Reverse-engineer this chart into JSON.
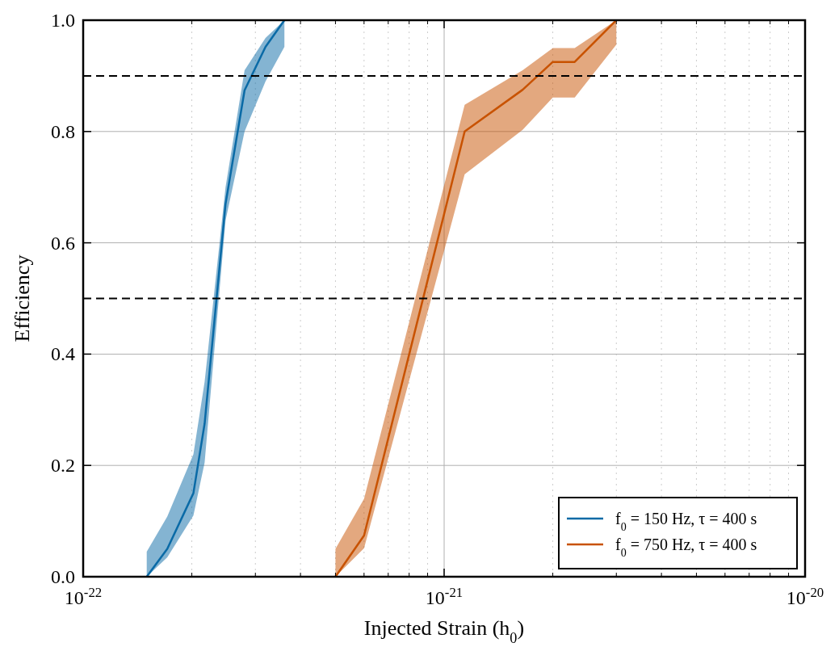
{
  "chart_data": {
    "type": "line",
    "xlabel": "Injected Strain (h$_{0}$)",
    "ylabel": "Efficiency",
    "log": "x",
    "xlim": [
      1e-22,
      1e-20
    ],
    "xticks": [
      {
        "value": 1e-22,
        "label": "10$^{-22}$"
      },
      {
        "value": 1e-21,
        "label": "10$^{-21}$"
      },
      {
        "value": 1e-20,
        "label": "10$^{-20}$"
      }
    ],
    "ylim": [
      0,
      1
    ],
    "yticks": [
      {
        "value": 0,
        "label": "0.0"
      },
      {
        "value": 0.2,
        "label": "0.2"
      },
      {
        "value": 0.4,
        "label": "0.4"
      },
      {
        "value": 0.6,
        "label": "0.6"
      },
      {
        "value": 0.8,
        "label": "0.8"
      },
      {
        "value": 1,
        "label": "1.0"
      }
    ],
    "grid": true,
    "legend": "bottom right",
    "marker": "none",
    "line_style": "solid",
    "ref_lines": [
      {
        "axis": "y",
        "value": 0.5,
        "color": "#000000",
        "line_style": "dashed"
      },
      {
        "axis": "y",
        "value": 0.9,
        "color": "#000000",
        "line_style": "dashed"
      }
    ],
    "series": [
      {
        "name": "f$_{0}$ = 150 Hz, τ = 400 s",
        "color": "#0a6aa6",
        "x": [
          1.5e-22,
          1.71e-22,
          2.02e-22,
          2.17e-22,
          2.48e-22,
          2.8e-22,
          3.2e-22,
          3.61e-22
        ],
        "values": [
          0,
          0.05,
          0.15,
          0.275,
          0.67,
          0.874,
          0.952,
          1.0
        ],
        "lower": [
          0,
          0.035,
          0.11,
          0.205,
          0.64,
          0.8,
          0.89,
          0.952
        ],
        "upper": [
          0.045,
          0.108,
          0.22,
          0.35,
          0.7,
          0.91,
          0.968,
          1.0
        ]
      },
      {
        "name": "f$_{0}$ = 750 Hz, τ = 400 s",
        "color": "#c85200",
        "x": [
          5e-22,
          6e-22,
          1.14e-21,
          1.65e-21,
          2e-21,
          2.3e-21,
          3e-21
        ],
        "values": [
          0,
          0.074,
          0.8,
          0.875,
          0.925,
          0.925,
          1.0
        ],
        "lower": [
          0,
          0.051,
          0.723,
          0.803,
          0.861,
          0.861,
          0.956
        ],
        "upper": [
          0.05,
          0.14,
          0.848,
          0.91,
          0.95,
          0.95,
          1.0
        ]
      }
    ]
  }
}
